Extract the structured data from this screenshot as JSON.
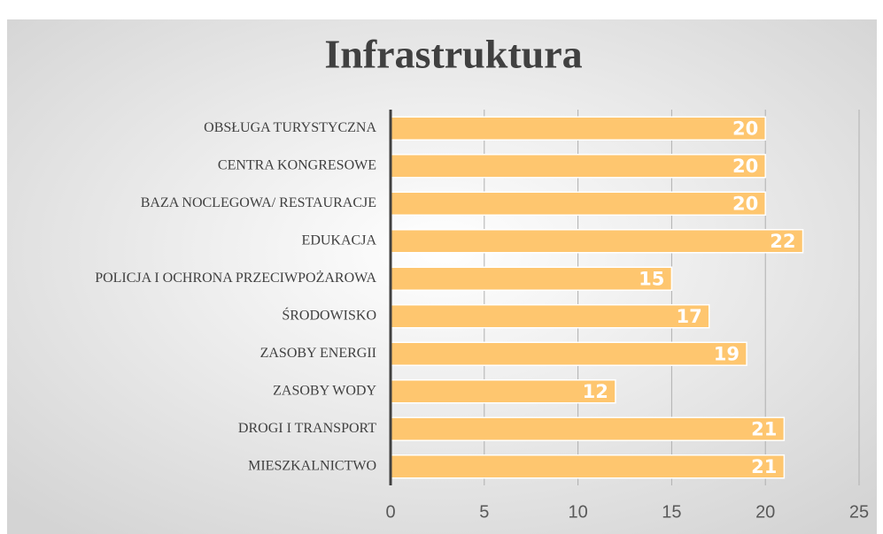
{
  "chart_data": {
    "type": "bar",
    "orientation": "horizontal",
    "title": "Infrastruktura",
    "categories": [
      "OBSŁUGA TURYSTYCZNA",
      "CENTRA KONGRESOWE",
      "BAZA NOCLEGOWA/ RESTAURACJE",
      "EDUKACJA",
      "POLICJA I OCHRONA PRZECIWPOŻAROWA",
      "ŚRODOWISKO",
      "ZASOBY ENERGII",
      "ZASOBY WODY",
      "DROGI I TRANSPORT",
      "MIESZKALNICTWO"
    ],
    "values": [
      20,
      20,
      20,
      22,
      15,
      17,
      19,
      12,
      21,
      21
    ],
    "color": "#fec66f",
    "xlim": [
      0,
      25
    ],
    "xticks": [
      0,
      5,
      10,
      15,
      20,
      25
    ],
    "grid": true
  }
}
